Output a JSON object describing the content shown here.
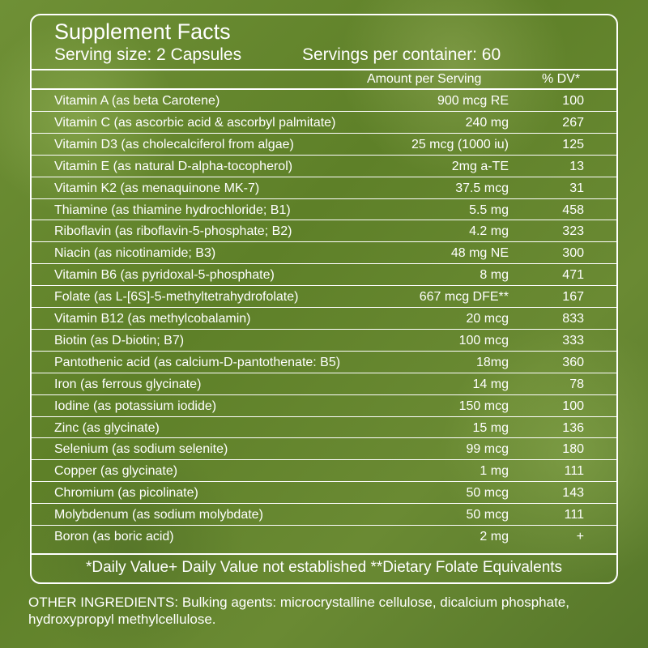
{
  "title": "Supplement Facts",
  "serving_size": "Serving size: 2 Capsules",
  "servings_per_container": "Servings per container: 60",
  "header": {
    "amount": "Amount per Serving",
    "dv": "% DV*"
  },
  "nutrients": [
    {
      "name": "Vitamin A (as beta Carotene)",
      "amount": "900 mcg RE",
      "dv": "100"
    },
    {
      "name": "Vitamin C (as ascorbic acid & ascorbyl palmitate)",
      "amount": "240 mg",
      "dv": "267"
    },
    {
      "name": "Vitamin D3 (as cholecalciferol from algae)",
      "amount": "25 mcg (1000 iu)",
      "dv": "125"
    },
    {
      "name": "Vitamin E (as natural D-alpha-tocopherol)",
      "amount": "2mg a-TE",
      "dv": "13"
    },
    {
      "name": "Vitamin K2 (as menaquinone MK-7)",
      "amount": "37.5 mcg",
      "dv": "31"
    },
    {
      "name": "Thiamine (as thiamine hydrochloride; B1)",
      "amount": "5.5 mg",
      "dv": "458"
    },
    {
      "name": "Riboflavin (as riboflavin-5-phosphate; B2)",
      "amount": "4.2 mg",
      "dv": "323"
    },
    {
      "name": "Niacin (as nicotinamide; B3)",
      "amount": "48 mg NE",
      "dv": "300"
    },
    {
      "name": "Vitamin B6 (as pyridoxal-5-phosphate)",
      "amount": "8 mg",
      "dv": "471"
    },
    {
      "name": "Folate (as L-[6S]-5-methyltetrahydrofolate)",
      "amount": "667 mcg DFE**",
      "dv": "167"
    },
    {
      "name": "Vitamin B12 (as methylcobalamin)",
      "amount": "20 mcg",
      "dv": "833"
    },
    {
      "name": "Biotin (as D-biotin; B7)",
      "amount": "100 mcg",
      "dv": "333"
    },
    {
      "name": "Pantothenic acid (as calcium-D-pantothenate: B5)",
      "amount": "18mg",
      "dv": "360"
    },
    {
      "name": "Iron (as ferrous glycinate)",
      "amount": "14 mg",
      "dv": "78"
    },
    {
      "name": "Iodine (as potassium iodide)",
      "amount": "150 mcg",
      "dv": "100"
    },
    {
      "name": "Zinc (as glycinate)",
      "amount": "15 mg",
      "dv": "136"
    },
    {
      "name": "Selenium (as sodium selenite)",
      "amount": "99 mcg",
      "dv": "180"
    },
    {
      "name": "Copper (as glycinate)",
      "amount": "1 mg",
      "dv": "111"
    },
    {
      "name": "Chromium (as picolinate)",
      "amount": "50 mcg",
      "dv": "143"
    },
    {
      "name": "Molybdenum (as sodium molybdate)",
      "amount": "50 mcg",
      "dv": "111"
    },
    {
      "name": "Boron (as boric acid)",
      "amount": "2 mg",
      "dv": "+"
    }
  ],
  "footnote": "*Daily Value+ Daily Value not established **Dietary Folate Equivalents",
  "other_ingredients": "OTHER INGREDIENTS: Bulking agents: microcrystalline cellulose, dicalcium phosphate, hydroxypropyl methylcellulose."
}
